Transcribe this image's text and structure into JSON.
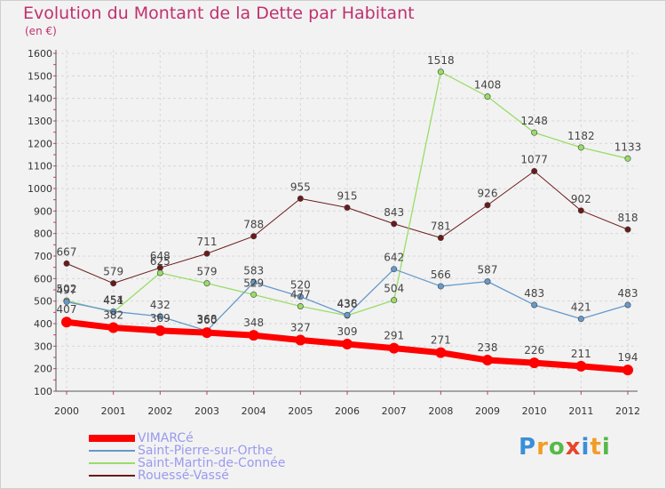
{
  "header": {
    "title": "Evolution du Montant de la Dette par Habitant",
    "subtitle": "(en €)"
  },
  "logo": {
    "letters": [
      "P",
      "r",
      "o",
      "x",
      "i",
      "t",
      "i"
    ],
    "colors": [
      "#3a8fd9",
      "#f29d27",
      "#57b947",
      "#e8442b",
      "#3a8fd9",
      "#f29d27",
      "#57b947"
    ]
  },
  "chart_data": {
    "type": "line",
    "x": [
      "2000",
      "2001",
      "2002",
      "2003",
      "2004",
      "2005",
      "2006",
      "2007",
      "2008",
      "2009",
      "2010",
      "2011",
      "2012"
    ],
    "yticks": [
      100,
      200,
      300,
      400,
      500,
      600,
      700,
      800,
      900,
      1000,
      1100,
      1200,
      1300,
      1400,
      1500,
      1600
    ],
    "ylim": [
      100,
      1600
    ],
    "grid": true,
    "legend_position": "bottom-left",
    "series": [
      {
        "name": "Rouessé-Vassé",
        "color": "#6b1a1a",
        "width": 1,
        "values": [
          667,
          579,
          648,
          711,
          788,
          955,
          915,
          843,
          781,
          926,
          1077,
          902,
          818
        ]
      },
      {
        "name": "Saint-Martin-de-Connée",
        "color": "#99dd66",
        "width": 1.3,
        "values": [
          502,
          451,
          625,
          579,
          529,
          477,
          436,
          504,
          1518,
          1408,
          1248,
          1182,
          1133
        ]
      },
      {
        "name": "Saint-Pierre-sur-Orthe",
        "color": "#6699cc",
        "width": 1.3,
        "values": [
          497,
          454,
          432,
          368,
          583,
          520,
          438,
          642,
          566,
          587,
          483,
          421,
          483
        ]
      },
      {
        "name": "VIMARCé",
        "color": "#ff0000",
        "width": 7,
        "values": [
          407,
          382,
          369,
          360,
          348,
          327,
          309,
          291,
          271,
          238,
          226,
          211,
          194
        ]
      }
    ],
    "legend": [
      "VIMARCé",
      "Saint-Pierre-sur-Orthe",
      "Saint-Martin-de-Connée",
      "Rouessé-Vassé"
    ]
  }
}
